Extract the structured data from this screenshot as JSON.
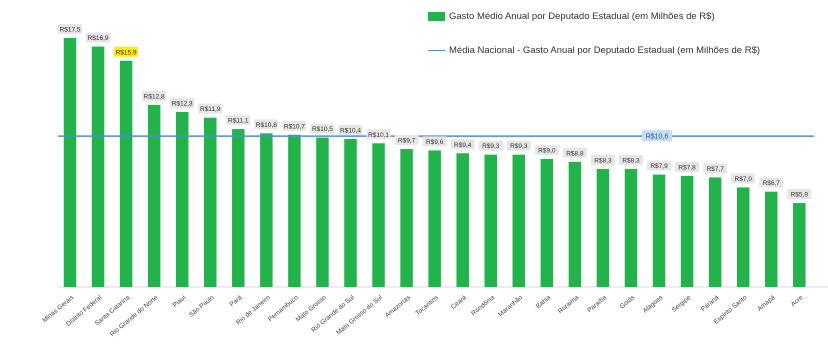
{
  "chart_data": {
    "type": "bar",
    "categories": [
      "Minas Gerais",
      "Distrito Federal",
      "Santa Catarina",
      "Rio Grande do Norte",
      "Piauí",
      "São Paulo",
      "Pará",
      "Rio de Janeiro",
      "Pernambuco",
      "Mato Grosso",
      "Rio Grande do Sul",
      "Mato Grosso do Sul",
      "Amazonas",
      "Tocantins",
      "Ceará",
      "Rondônia",
      "Maranhão",
      "Bahia",
      "Roraima",
      "Paraíba",
      "Goiás",
      "Alagoas",
      "Sergipe",
      "Paraná",
      "Espírito Santo",
      "Amapá",
      "Acre"
    ],
    "values": [
      17.5,
      16.9,
      15.9,
      12.8,
      12.3,
      11.9,
      11.1,
      10.8,
      10.7,
      10.5,
      10.4,
      10.1,
      9.7,
      9.6,
      9.4,
      9.3,
      9.3,
      9.0,
      8.8,
      8.3,
      8.3,
      7.9,
      7.8,
      7.7,
      7.0,
      6.7,
      5.9
    ],
    "data_labels": [
      "R$17,5",
      "R$16,9",
      "R$15,9",
      "R$12,8",
      "R$12,3",
      "R$11,9",
      "R$11,1",
      "R$10,8",
      "R$10,7",
      "R$10,5",
      "R$10,4",
      "R$10,1",
      "R$9,7",
      "R$9,6",
      "R$9,4",
      "R$9,3",
      "R$9,3",
      "R$9,0",
      "R$8,8",
      "R$8,3",
      "R$8,3",
      "R$7,9",
      "R$7,8",
      "R$7,7",
      "R$7,0",
      "R$6,7",
      "R$5,9"
    ],
    "highlighted_category": "Santa Catarina",
    "series": [
      {
        "name": "Gasto Médio Anual por Deputado Estadual (em Milhões de R$)",
        "type": "bar"
      },
      {
        "name": "Média Nacional - Gasto Anual por Deputado Estadual (em Milhões de R$)",
        "type": "line",
        "value": 10.6,
        "label": "R$10,6"
      }
    ],
    "ylim": [
      0,
      18.5
    ],
    "grid": false,
    "legend_position": "top-right",
    "colors": {
      "bar": "#22b34a",
      "mean_line": "#4a8fd4",
      "label_box": "#e6e6e6",
      "highlight_box": "#ffee00",
      "mean_label_box": "#c7dcf2"
    }
  }
}
